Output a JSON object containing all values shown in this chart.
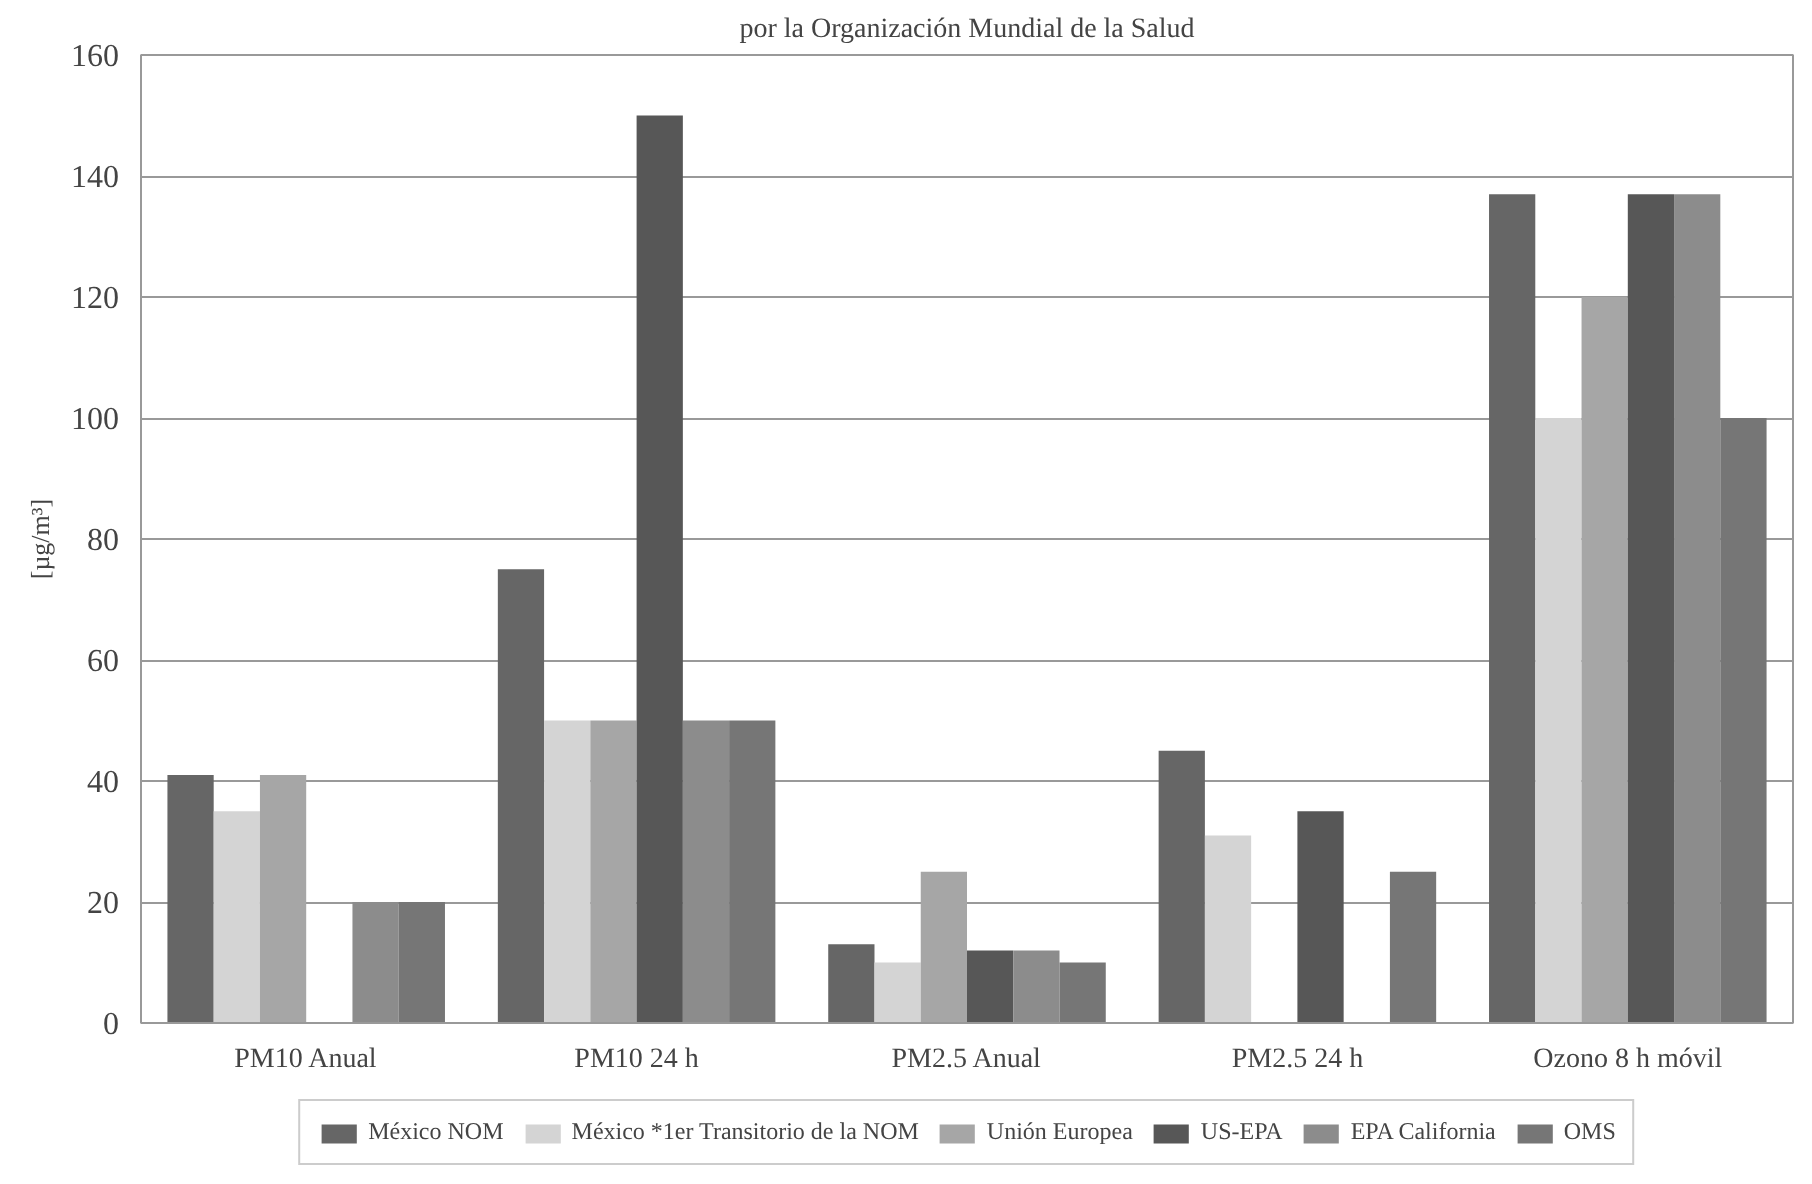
{
  "chart_data": {
    "type": "bar",
    "title": "por la Organización Mundial de la Salud",
    "ylabel": "[µg/m³]",
    "categories": [
      "PM10 Anual",
      "PM10 24 h",
      "PM2.5 Anual",
      "PM2.5 24 h",
      "Ozono 8 h móvil"
    ],
    "series": [
      {
        "name": "México NOM",
        "color": "#666666",
        "values": [
          41,
          75,
          13,
          45,
          137
        ]
      },
      {
        "name": "México *1er Transitorio de la NOM",
        "color": "#d4d4d4",
        "values": [
          35,
          50,
          10,
          31,
          100
        ]
      },
      {
        "name": "Unión Europea",
        "color": "#a6a6a6",
        "values": [
          41,
          50,
          25,
          null,
          120
        ]
      },
      {
        "name": "US-EPA",
        "color": "#575757",
        "values": [
          null,
          150,
          12,
          35,
          137
        ]
      },
      {
        "name": "EPA California",
        "color": "#8c8c8c",
        "values": [
          20,
          50,
          12,
          null,
          137
        ]
      },
      {
        "name": "OMS",
        "color": "#767676",
        "values": [
          20,
          50,
          10,
          25,
          100
        ]
      }
    ],
    "ylim": [
      0,
      160
    ],
    "yticks": [
      0,
      20,
      40,
      60,
      80,
      100,
      120,
      140,
      160
    ],
    "grid": "y",
    "legend": "bottom"
  }
}
